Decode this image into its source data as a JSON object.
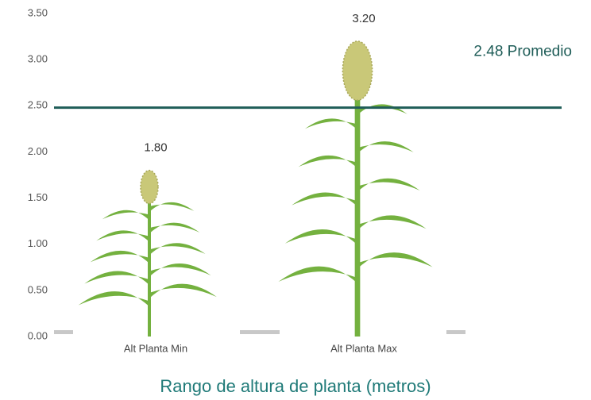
{
  "chart_data": {
    "type": "pictograph",
    "title": "Rango de altura de planta (metros)",
    "categories": [
      "Alt Planta Min",
      "Alt Planta Max"
    ],
    "values": [
      1.8,
      3.2
    ],
    "value_labels": [
      "1.80",
      "3.20"
    ],
    "color": "#74b13f",
    "ylim": [
      0,
      3.5
    ],
    "yticks": [
      {
        "value": 0,
        "label": "0.00"
      },
      {
        "value": 0.5,
        "label": "0.50"
      },
      {
        "value": 1,
        "label": "1.00"
      },
      {
        "value": 1.5,
        "label": "1.50"
      },
      {
        "value": 2,
        "label": "2.00"
      },
      {
        "value": 2.5,
        "label": "2.50"
      },
      {
        "value": 3,
        "label": "3.00"
      },
      {
        "value": 3.5,
        "label": "3.50"
      }
    ],
    "reference_line": {
      "value": 2.48,
      "label": "2.48 Promedio",
      "color": "#1f5d58"
    }
  }
}
